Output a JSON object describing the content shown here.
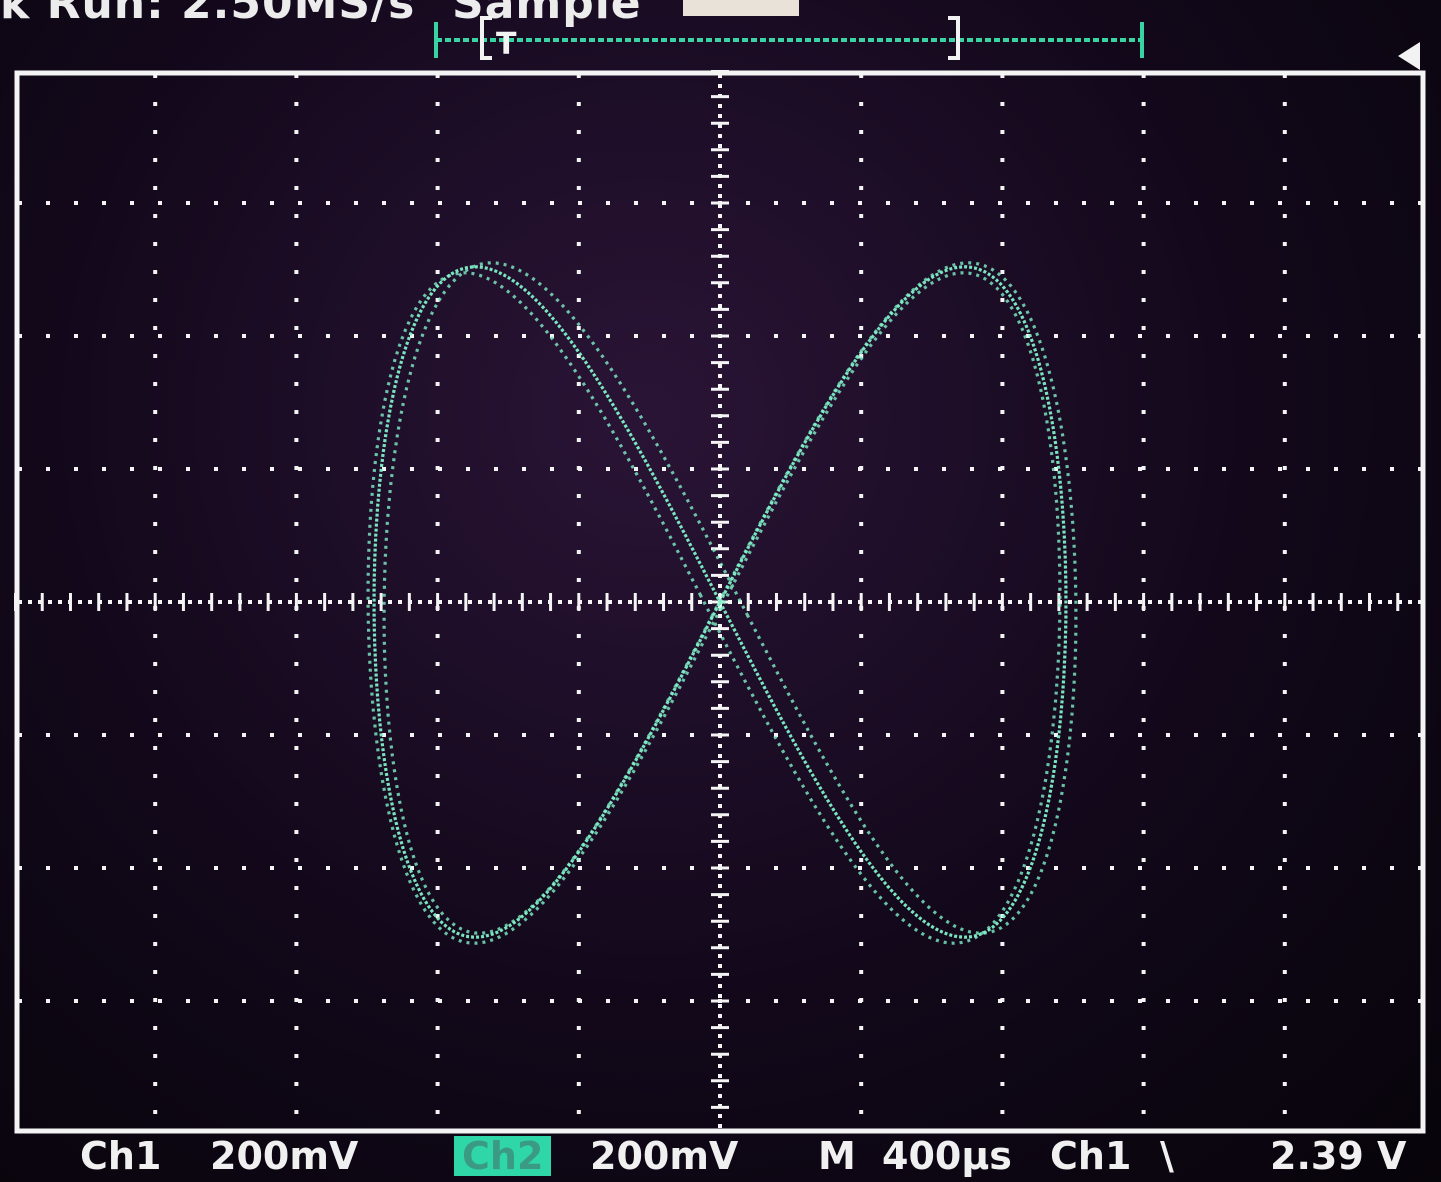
{
  "header": {
    "run_status": "k Run: 2.50MS/s",
    "acquisition_mode": "Sample",
    "trigger_label": "T"
  },
  "footer": {
    "ch1_label": "Ch1",
    "ch1_scale": "200mV",
    "ch2_label": "Ch2",
    "ch2_scale": "200mV",
    "timebase_label": "M",
    "timebase_value": "400µs",
    "trigger_source": "Ch1",
    "trigger_slope_symbol": "\\",
    "trigger_level": "2.39 V"
  },
  "display": {
    "mode": "XY",
    "trace_color": "#7ff0c8",
    "graticule_color": "#f4f4f4",
    "h_divisions": 10,
    "v_divisions": 8,
    "shape": "lissajous-figure-eight"
  }
}
